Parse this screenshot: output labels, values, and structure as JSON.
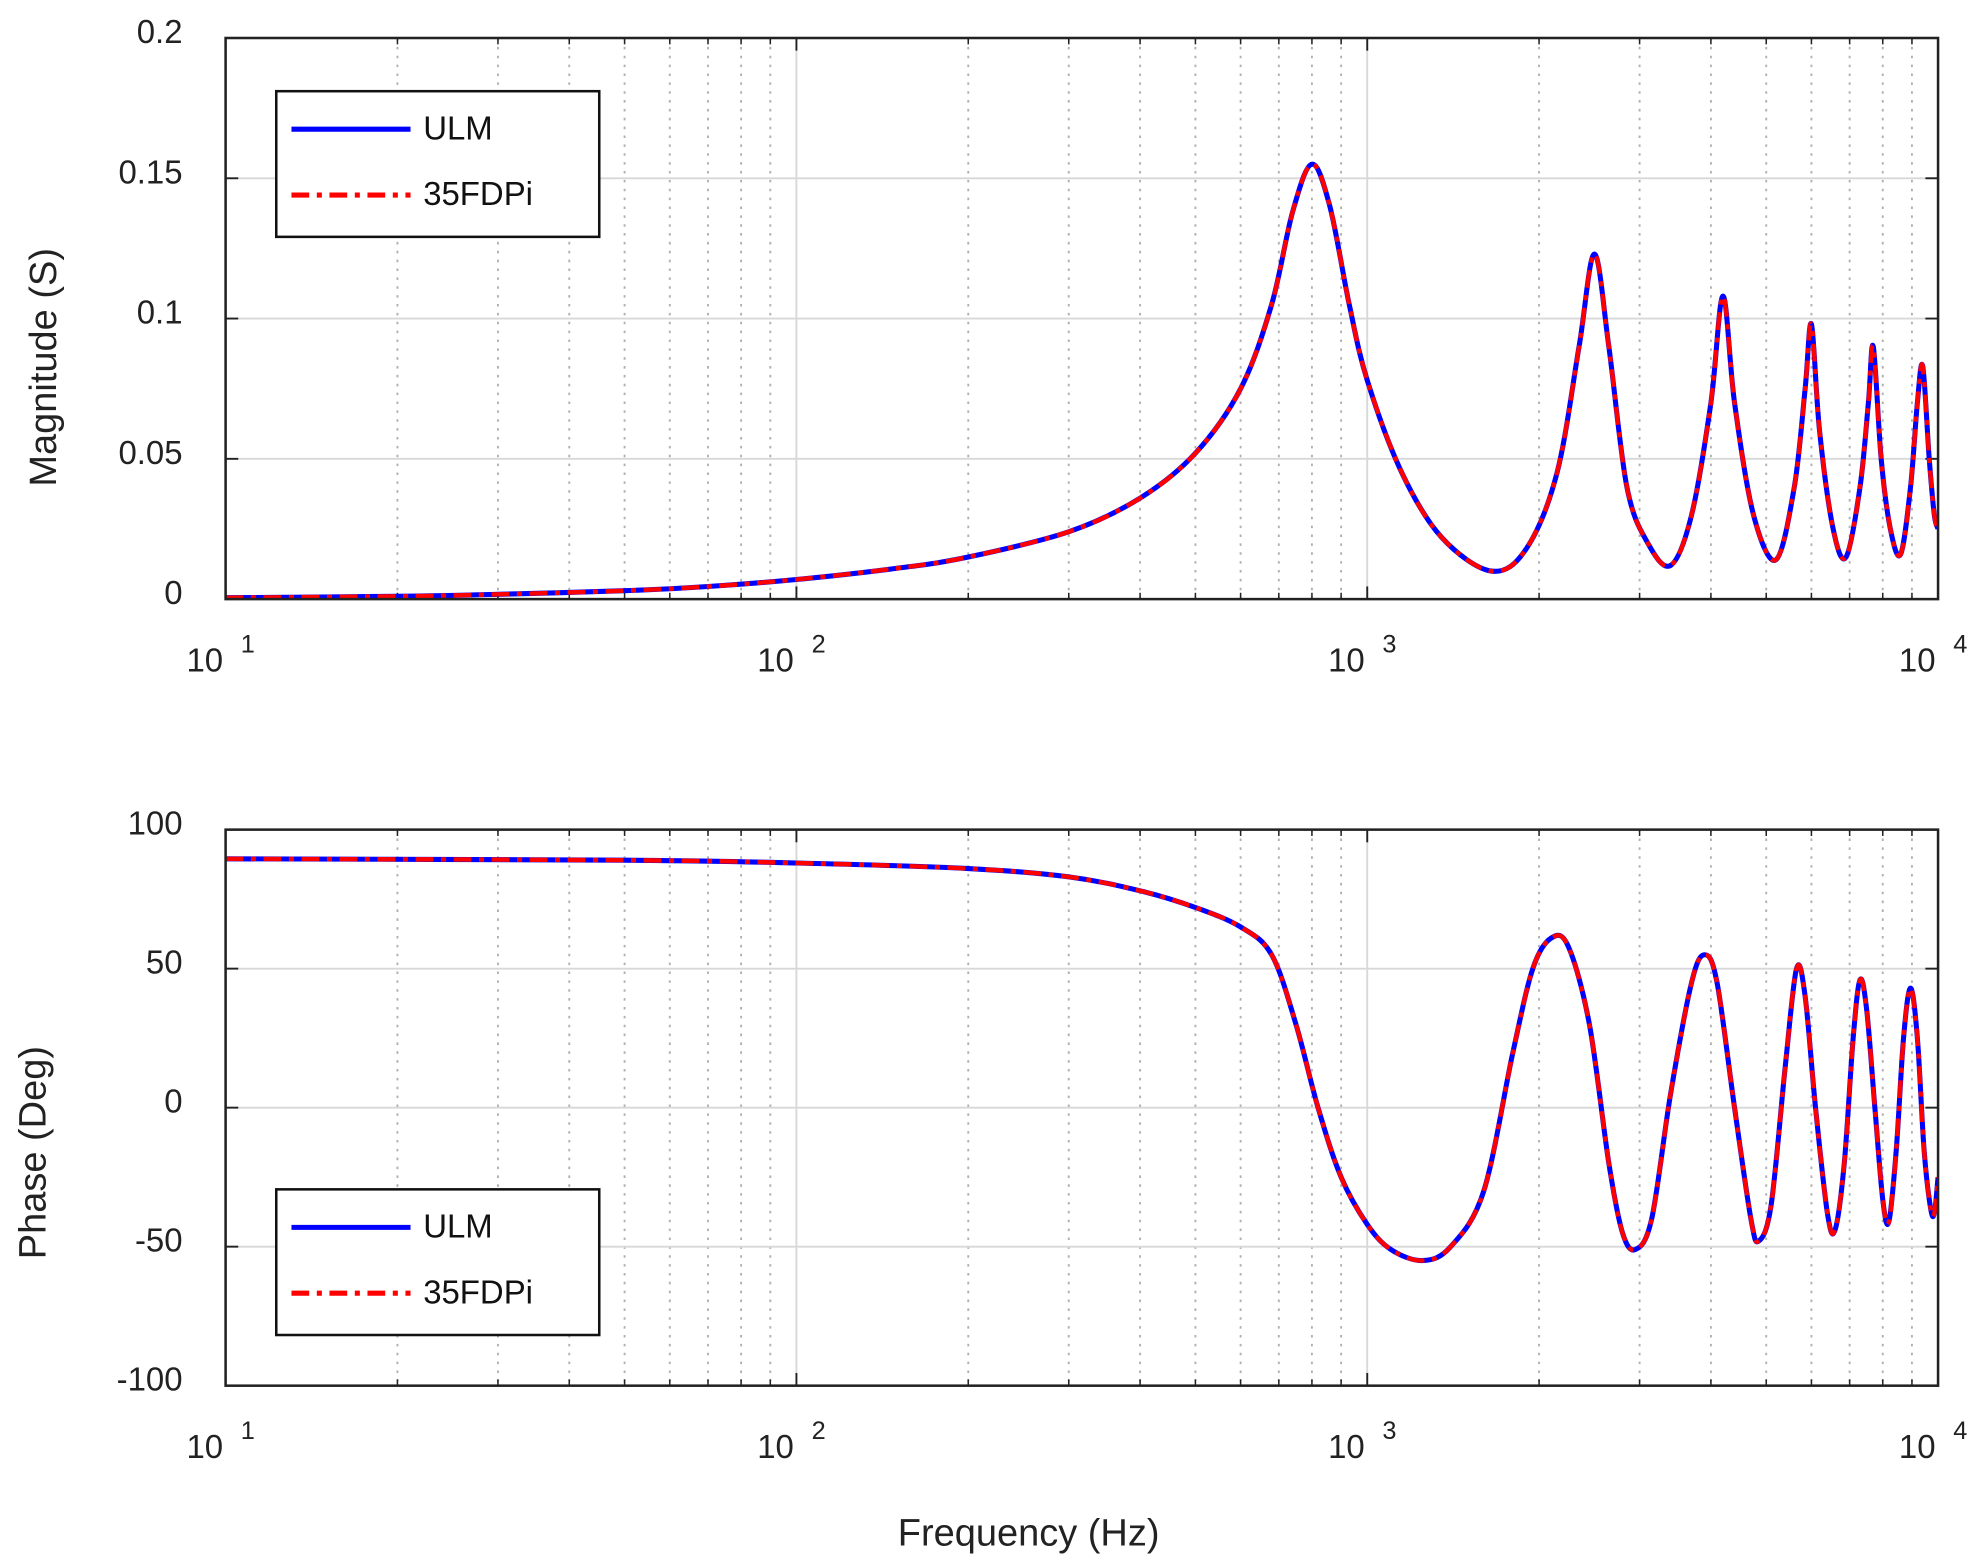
{
  "chart_data": [
    {
      "type": "line",
      "title": "",
      "xlabel": "",
      "ylabel": "Magnitude (S)",
      "xscale": "log",
      "xlim": [
        10,
        10000
      ],
      "ylim": [
        0,
        0.2
      ],
      "yticks": [
        "0",
        "0.05",
        "0.1",
        "0.15",
        "0.2"
      ],
      "ytick_values": [
        0,
        0.05,
        0.1,
        0.15,
        0.2
      ],
      "xticks": [
        {
          "base": "10",
          "exp": "1"
        },
        {
          "base": "10",
          "exp": "2"
        },
        {
          "base": "10",
          "exp": "3"
        },
        {
          "base": "10",
          "exp": "4"
        }
      ],
      "grid": true,
      "legend": {
        "placement": "top-left",
        "entries": [
          "ULM",
          "35FDPi"
        ]
      },
      "x": [
        10,
        20,
        30,
        50,
        70,
        100,
        150,
        200,
        300,
        400,
        500,
        600,
        680,
        740,
        800,
        860,
        930,
        1000,
        1150,
        1350,
        1650,
        1900,
        2150,
        2350,
        2500,
        2650,
        2850,
        3100,
        3400,
        3700,
        4000,
        4200,
        4400,
        4750,
        5200,
        5600,
        5850,
        6000,
        6200,
        6550,
        6900,
        7300,
        7550,
        7700,
        7950,
        8250,
        8600,
        8950,
        9200,
        9400,
        9650,
        9850,
        10000
      ],
      "series": [
        {
          "name": "ULM",
          "color": "#0000ff",
          "style": "solid",
          "values": [
            0.0005,
            0.001,
            0.0017,
            0.003,
            0.0045,
            0.007,
            0.011,
            0.015,
            0.024,
            0.036,
            0.052,
            0.075,
            0.105,
            0.138,
            0.155,
            0.14,
            0.105,
            0.078,
            0.045,
            0.022,
            0.01,
            0.018,
            0.045,
            0.09,
            0.123,
            0.09,
            0.04,
            0.02,
            0.012,
            0.03,
            0.07,
            0.108,
            0.07,
            0.03,
            0.014,
            0.04,
            0.075,
            0.098,
            0.06,
            0.025,
            0.015,
            0.04,
            0.07,
            0.09,
            0.05,
            0.025,
            0.016,
            0.04,
            0.07,
            0.083,
            0.05,
            0.03,
            0.025
          ]
        },
        {
          "name": "35FDPi",
          "color": "#ff0000",
          "style": "dashdot",
          "values": [
            0.0005,
            0.001,
            0.0017,
            0.003,
            0.0045,
            0.007,
            0.011,
            0.015,
            0.024,
            0.036,
            0.052,
            0.075,
            0.105,
            0.138,
            0.155,
            0.14,
            0.105,
            0.078,
            0.045,
            0.022,
            0.01,
            0.018,
            0.045,
            0.09,
            0.123,
            0.09,
            0.04,
            0.02,
            0.012,
            0.03,
            0.07,
            0.108,
            0.07,
            0.03,
            0.014,
            0.04,
            0.075,
            0.098,
            0.06,
            0.025,
            0.015,
            0.04,
            0.07,
            0.09,
            0.05,
            0.025,
            0.016,
            0.04,
            0.07,
            0.083,
            0.05,
            0.03,
            0.025
          ]
        }
      ]
    },
    {
      "type": "line",
      "title": "",
      "xlabel": "Frequency (Hz)",
      "ylabel": "Phase (Deg)",
      "xscale": "log",
      "xlim": [
        10,
        10000
      ],
      "ylim": [
        -100,
        100
      ],
      "yticks": [
        "-100",
        "-50",
        "0",
        "50",
        "100"
      ],
      "ytick_values": [
        -100,
        -50,
        0,
        50,
        100
      ],
      "xticks": [
        {
          "base": "10",
          "exp": "1"
        },
        {
          "base": "10",
          "exp": "2"
        },
        {
          "base": "10",
          "exp": "3"
        },
        {
          "base": "10",
          "exp": "4"
        }
      ],
      "grid": true,
      "legend": {
        "placement": "bottom-left",
        "entries": [
          "ULM",
          "35FDPi"
        ]
      },
      "x": [
        10,
        50,
        100,
        200,
        300,
        400,
        500,
        600,
        680,
        750,
        820,
        900,
        1000,
        1100,
        1250,
        1400,
        1600,
        1800,
        1950,
        2100,
        2250,
        2450,
        2650,
        2800,
        2950,
        3150,
        3400,
        3700,
        3900,
        4100,
        4400,
        4700,
        4850,
        5100,
        5400,
        5650,
        5850,
        6100,
        6400,
        6600,
        6850,
        7100,
        7300,
        7500,
        7750,
        8000,
        8200,
        8450,
        8700,
        8950,
        9200,
        9450,
        9700,
        9850,
        10000
      ],
      "series": [
        {
          "name": "ULM",
          "color": "#0000ff",
          "style": "solid",
          "values": [
            89.5,
            89,
            88,
            86,
            83,
            78,
            72,
            65,
            55,
            30,
            0,
            -25,
            -42,
            -51,
            -55,
            -50,
            -30,
            20,
            50,
            61,
            58,
            30,
            -20,
            -45,
            -51,
            -40,
            5,
            45,
            55,
            45,
            0,
            -40,
            -48,
            -35,
            15,
            50,
            40,
            0,
            -38,
            -44,
            -20,
            25,
            46,
            35,
            0,
            -33,
            -41,
            -15,
            25,
            43,
            25,
            -15,
            -36,
            -38,
            -25
          ]
        },
        {
          "name": "35FDPi",
          "color": "#ff0000",
          "style": "dashdot",
          "values": [
            89.5,
            89,
            88,
            86,
            83,
            78,
            72,
            65,
            55,
            30,
            0,
            -25,
            -42,
            -51,
            -55,
            -50,
            -30,
            20,
            50,
            61,
            58,
            30,
            -20,
            -45,
            -51,
            -40,
            5,
            45,
            55,
            45,
            0,
            -40,
            -48,
            -35,
            15,
            50,
            40,
            0,
            -38,
            -44,
            -20,
            25,
            46,
            35,
            0,
            -33,
            -41,
            -15,
            25,
            43,
            25,
            -15,
            -36,
            -38,
            -25
          ]
        }
      ]
    }
  ]
}
